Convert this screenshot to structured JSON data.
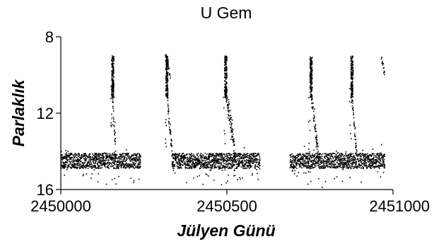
{
  "chart_data": {
    "type": "scatter",
    "title": "U Gem",
    "xlabel": "Jülyen Günü",
    "ylabel": "Parlaklık",
    "xlim": [
      2450000,
      2451000
    ],
    "ylim": [
      16,
      8
    ],
    "y_inverted": true,
    "x_ticks": [
      2450000,
      2450500,
      2451000
    ],
    "x_tick_labels": [
      "2450000",
      "2450500",
      "2451000"
    ],
    "y_ticks": [
      8,
      12,
      16
    ],
    "y_tick_labels": [
      "8",
      "12",
      "16"
    ],
    "grid": false,
    "marker_color": "#000000",
    "quiescent_magnitude": [
      14.1,
      14.9
    ],
    "outburst_peak_magnitude": 9.0,
    "segments": [
      {
        "x_start": 2450000,
        "x_end": 2450240,
        "state": "quiescent"
      },
      {
        "x_start": 2450315,
        "x_end": 2450330,
        "state": "decline"
      },
      {
        "x_start": 2450335,
        "x_end": 2450600,
        "state": "quiescent"
      },
      {
        "x_start": 2450690,
        "x_end": 2450975,
        "state": "quiescent"
      },
      {
        "x_start": 2450965,
        "x_end": 2450975,
        "state": "decline"
      }
    ],
    "outbursts": [
      {
        "rise_x": 2450150,
        "peak_x": 2450155,
        "peak_mag": 9.0,
        "end_x": 2450165
      },
      {
        "rise_x": 2450315,
        "peak_x": 2450318,
        "peak_mag": 9.0,
        "end_x": 2450335
      },
      {
        "rise_x": 2450490,
        "peak_x": 2450495,
        "peak_mag": 9.0,
        "end_x": 2450525
      },
      {
        "rise_x": 2450745,
        "peak_x": 2450752,
        "peak_mag": 9.0,
        "end_x": 2450775
      },
      {
        "rise_x": 2450870,
        "peak_x": 2450875,
        "peak_mag": 9.0,
        "end_x": 2450890
      }
    ]
  }
}
